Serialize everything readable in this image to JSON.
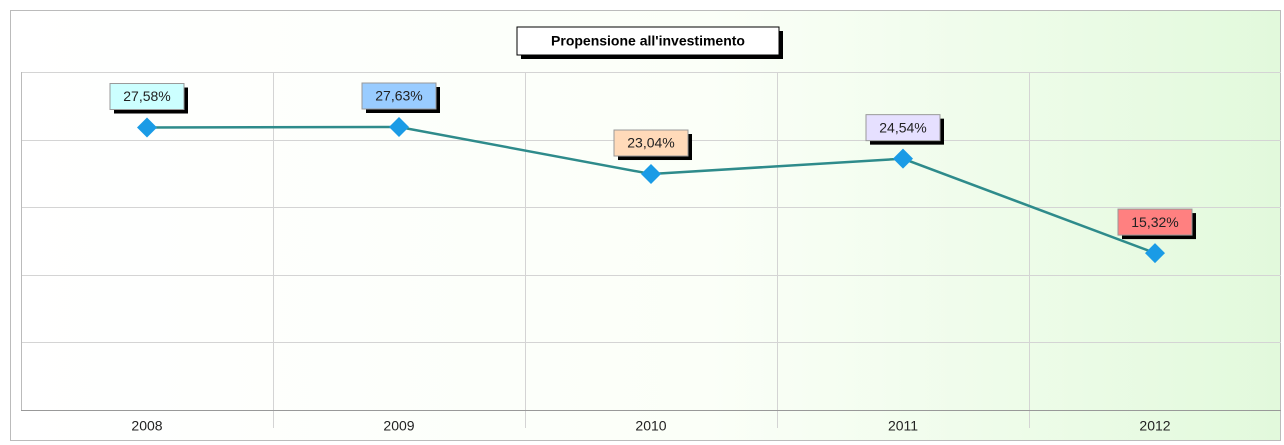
{
  "chart_data": {
    "type": "line",
    "title": "Propensione all'investimento",
    "categories": [
      "2008",
      "2009",
      "2010",
      "2011",
      "2012"
    ],
    "series": [
      {
        "color": "#2e8b8b",
        "marker_color": "#1a9be6",
        "values": [
          27.58,
          27.63,
          23.04,
          24.54,
          15.32
        ],
        "value_labels": [
          "27,58%",
          "27,63%",
          "23,04%",
          "24,54%",
          "15,32%"
        ],
        "label_colors": [
          "#ccffff",
          "#99ccff",
          "#ffdab9",
          "#e6e0ff",
          "#ff8080"
        ]
      }
    ],
    "ylim": [
      0,
      33
    ],
    "yticks": [
      0,
      6.6,
      13.2,
      19.8,
      26.4,
      33
    ],
    "grid": true
  }
}
